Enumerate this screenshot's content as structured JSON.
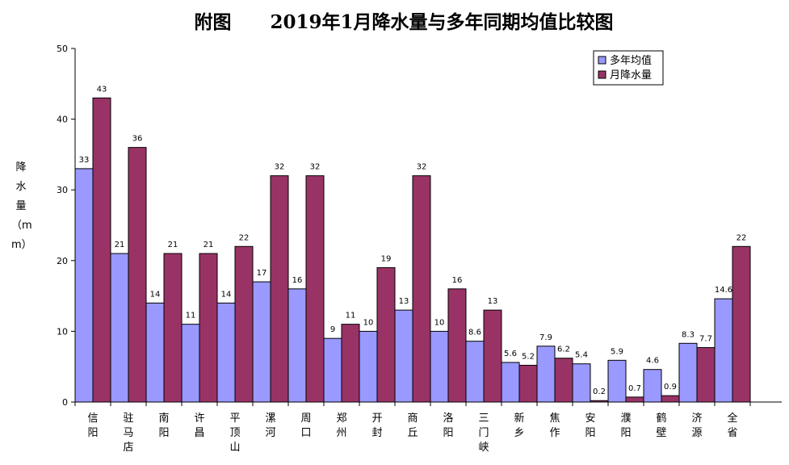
{
  "chart_data": {
    "type": "bar",
    "title": "附图      2019年1月降水量与多年同期均值比较图",
    "ylabel": "降水量（mm）",
    "xlabel": "",
    "ylim": [
      0,
      50
    ],
    "yticks": [
      0,
      10,
      20,
      30,
      40,
      50
    ],
    "grid": false,
    "legend_position": "top-right",
    "categories": [
      "信阳",
      "驻马店",
      "南阳",
      "许昌",
      "平顶山",
      "漯河",
      "周口",
      "郑州",
      "开封",
      "商丘",
      "洛阳",
      "三门峡",
      "新乡",
      "焦作",
      "安阳",
      "濮阳",
      "鹤壁",
      "济源",
      "全省"
    ],
    "series": [
      {
        "name": "多年均值",
        "color": "#9999FF",
        "values": [
          33,
          21,
          14,
          11,
          14,
          17,
          16,
          9,
          10,
          13,
          10,
          8.6,
          5.6,
          7.9,
          5.4,
          5.9,
          4.6,
          8.3,
          14.6
        ],
        "labels": [
          "33",
          "21",
          "14",
          "11",
          "14",
          "17",
          "16",
          "9",
          "10",
          "13",
          "10",
          "8.6",
          "5.6",
          "7.9",
          "5.4",
          "5.9",
          "4.6",
          "8.3",
          "14.6"
        ]
      },
      {
        "name": "月降水量",
        "color": "#993366",
        "values": [
          43,
          36,
          21,
          21,
          22,
          32,
          32,
          11,
          19,
          32,
          16,
          13,
          5.2,
          6.2,
          0.2,
          0.7,
          0.9,
          7.7,
          22
        ],
        "labels": [
          "43",
          "36",
          "21",
          "21",
          "22",
          "32",
          "32",
          "11",
          "19",
          "32",
          "16",
          "13",
          "5.2",
          "6.2",
          "0.2",
          "0.7",
          "0.9",
          "7.7",
          "22"
        ]
      }
    ]
  }
}
